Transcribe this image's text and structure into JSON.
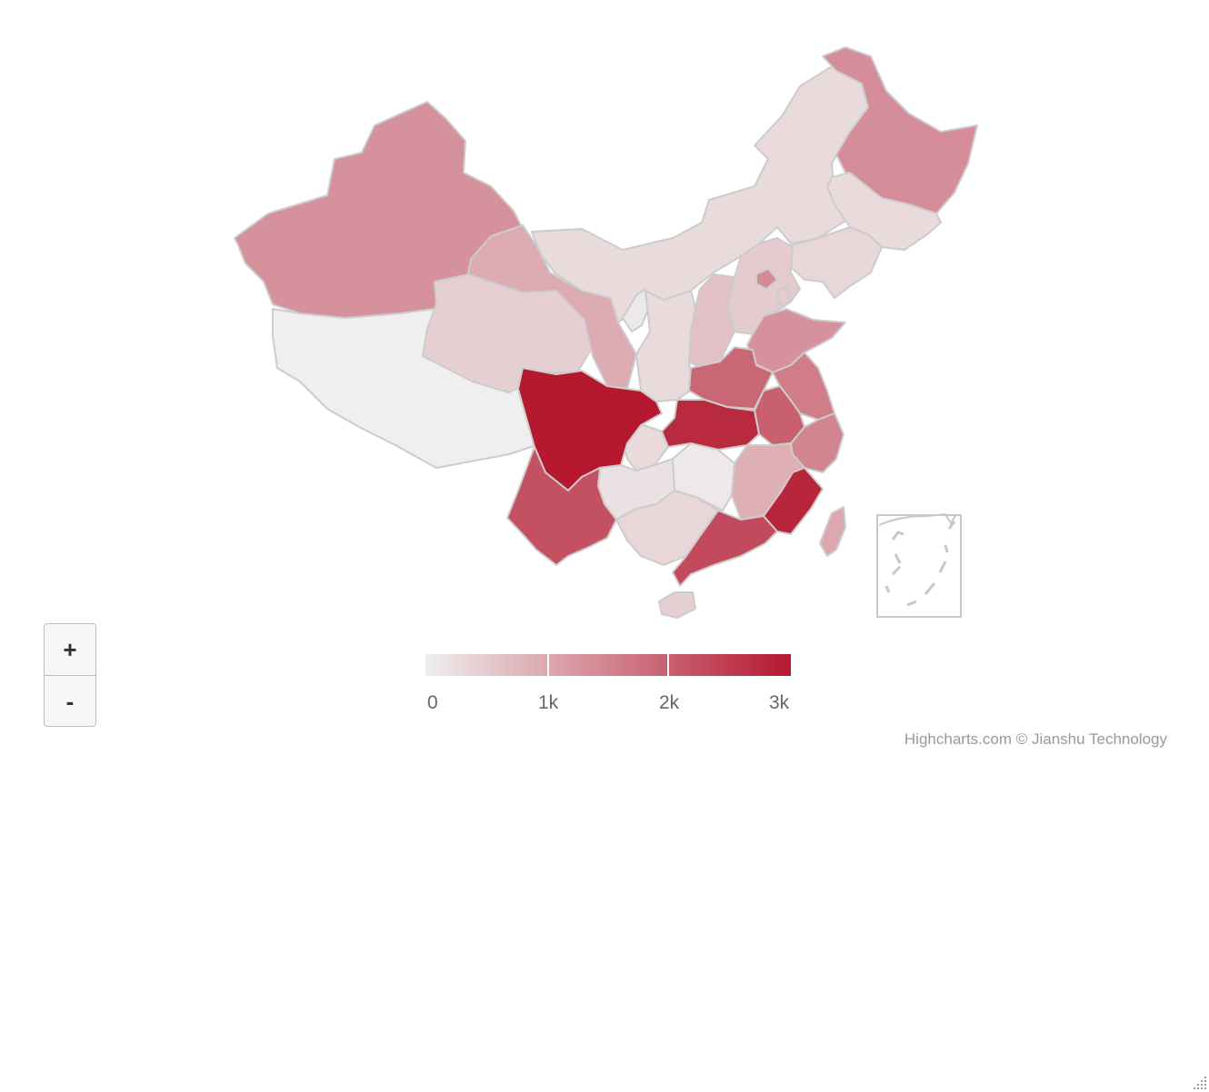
{
  "map": {
    "type": "choropleth",
    "colors": {
      "min": "#efefef",
      "max": "#b5182f",
      "border": "#cccccc"
    },
    "regions": [
      {
        "name": "Xinjiang",
        "value": 1300
      },
      {
        "name": "Tibet",
        "value": 0
      },
      {
        "name": "Qinghai",
        "value": 450
      },
      {
        "name": "Gansu",
        "value": 950
      },
      {
        "name": "Inner Mongolia",
        "value": 300
      },
      {
        "name": "Heilongjiang",
        "value": 1350
      },
      {
        "name": "Jilin",
        "value": 300
      },
      {
        "name": "Liaoning",
        "value": 350
      },
      {
        "name": "Hebei",
        "value": 500
      },
      {
        "name": "Beijing",
        "value": 1400
      },
      {
        "name": "Tianjin",
        "value": 500
      },
      {
        "name": "Shanxi",
        "value": 650
      },
      {
        "name": "Ningxia",
        "value": 100
      },
      {
        "name": "Shaanxi",
        "value": 300
      },
      {
        "name": "Shandong",
        "value": 1300
      },
      {
        "name": "Henan",
        "value": 1900
      },
      {
        "name": "Jiangsu",
        "value": 1600
      },
      {
        "name": "Anhui",
        "value": 2000
      },
      {
        "name": "Hubei",
        "value": 2750
      },
      {
        "name": "Chongqing",
        "value": 300
      },
      {
        "name": "Sichuan",
        "value": 3000
      },
      {
        "name": "Zhejiang",
        "value": 1500
      },
      {
        "name": "Jiangxi",
        "value": 900
      },
      {
        "name": "Hunan",
        "value": 100
      },
      {
        "name": "Guizhou",
        "value": 200
      },
      {
        "name": "Yunnan",
        "value": 2200
      },
      {
        "name": "Guangxi",
        "value": 350
      },
      {
        "name": "Guangdong",
        "value": 2300
      },
      {
        "name": "Fujian",
        "value": 2800
      },
      {
        "name": "Hainan",
        "value": 450
      },
      {
        "name": "Taiwan",
        "value": 1000
      }
    ]
  },
  "legend": {
    "min": 0,
    "max": 3000,
    "ticks": [
      "0",
      "1k",
      "2k",
      "3k"
    ]
  },
  "controls": {
    "zoom_in": "+",
    "zoom_out": "-"
  },
  "credits": "Highcharts.com © Jianshu Technology"
}
